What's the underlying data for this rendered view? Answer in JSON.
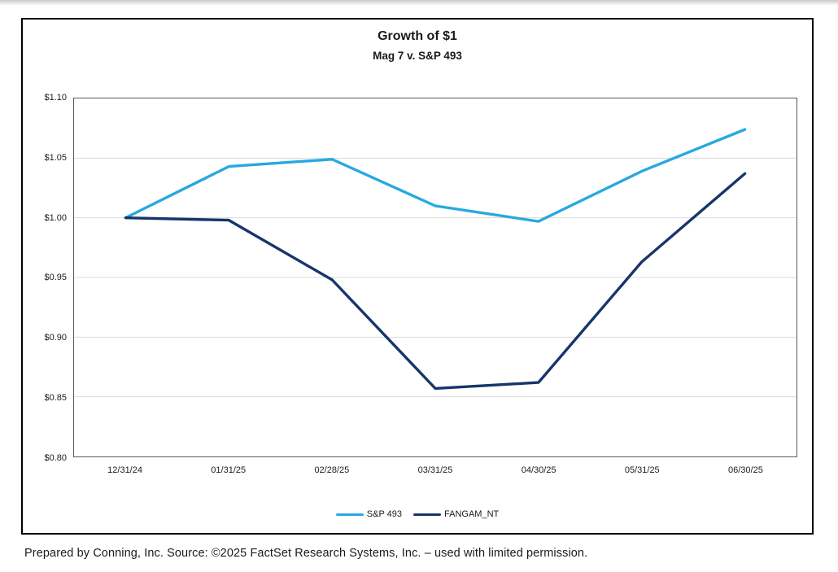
{
  "page": {
    "footer": "Prepared by Conning, Inc. Source: ©2025 FactSet Research Systems, Inc. – used with limited permission."
  },
  "chart_data": {
    "type": "line",
    "title": "Growth of $1",
    "subtitle": "Mag 7 v. S&P 493",
    "x": [
      "12/31/24",
      "01/31/25",
      "02/28/25",
      "03/31/25",
      "04/30/25",
      "05/31/25",
      "06/30/25"
    ],
    "series": [
      {
        "name": "S&P 493",
        "color": "#29A8E0",
        "values": [
          1.0,
          1.043,
          1.049,
          1.01,
          0.997,
          1.039,
          1.074
        ]
      },
      {
        "name": "FANGAM_NT",
        "color": "#17356B",
        "values": [
          1.0,
          0.998,
          0.948,
          0.857,
          0.862,
          0.963,
          1.037
        ]
      }
    ],
    "ylim": [
      0.8,
      1.1
    ],
    "ytick_step": 0.05,
    "ytick_labels": [
      "$1.10",
      "$1.05",
      "$1.00",
      "$0.95",
      "$0.90",
      "$0.85",
      "$0.80"
    ],
    "grid": true,
    "gridline_color": "#d9d9d9",
    "legend_position": "bottom"
  }
}
